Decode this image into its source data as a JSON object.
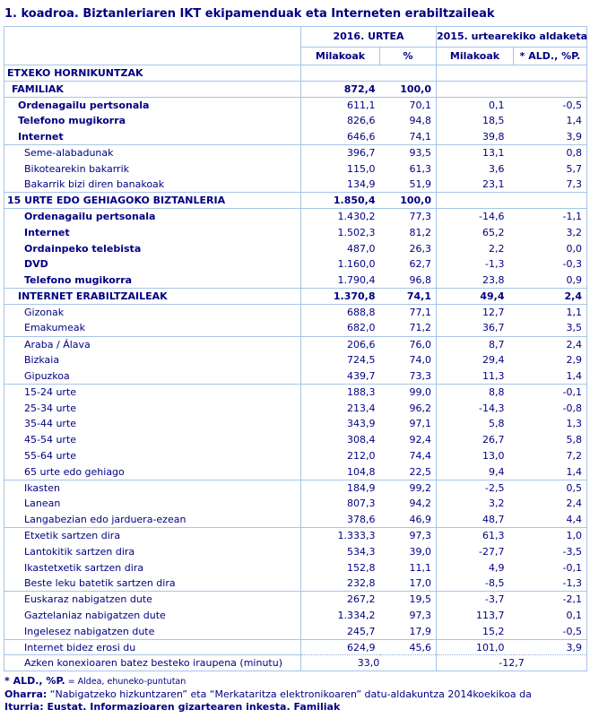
{
  "title": "1. koadroa. Biztanleriaren IKT ekipamenduak eta Interneten erabiltzaileak",
  "colors": {
    "text_navy": "#000082",
    "grid_light_blue": "#a6c5e8",
    "background": "#ffffff"
  },
  "table": {
    "corner_label": "",
    "groups": [
      {
        "label": "2016. URTEA"
      },
      {
        "label": "2015. urtearekiko aldaketa"
      }
    ],
    "sub_headers": [
      "Milakoak",
      "%",
      "Milakoak",
      "* ALD., %P."
    ],
    "rows": [
      {
        "label": "ETXEKO HORNIKUNTZAK",
        "indent": 0,
        "bold": true,
        "sep": true,
        "values": [
          "",
          "",
          "",
          ""
        ]
      },
      {
        "label": "FAMILIAK",
        "indent": 1,
        "bold": true,
        "vbold": true,
        "sep": true,
        "values": [
          "872,4",
          "100,0",
          "",
          ""
        ]
      },
      {
        "label": "Ordenagailu pertsonala",
        "indent": 2,
        "bold": true,
        "sep": true,
        "values": [
          "611,1",
          "70,1",
          "0,1",
          "-0,5"
        ]
      },
      {
        "label": "Telefono mugikorra",
        "indent": 2,
        "bold": true,
        "values": [
          "826,6",
          "94,8",
          "18,5",
          "1,4"
        ]
      },
      {
        "label": "Internet",
        "indent": 2,
        "bold": true,
        "values": [
          "646,6",
          "74,1",
          "39,8",
          "3,9"
        ]
      },
      {
        "label": "Seme-alabadunak",
        "indent": 3,
        "sep": true,
        "values": [
          "396,7",
          "93,5",
          "13,1",
          "0,8"
        ]
      },
      {
        "label": "Bikotearekin bakarrik",
        "indent": 3,
        "values": [
          "115,0",
          "61,3",
          "3,6",
          "5,7"
        ]
      },
      {
        "label": "Bakarrik bizi diren banakoak",
        "indent": 3,
        "values": [
          "134,9",
          "51,9",
          "23,1",
          "7,3"
        ]
      },
      {
        "label": "15 URTE EDO GEHIAGOKO BIZTANLERIA",
        "indent": 0,
        "bold": true,
        "vbold": true,
        "sep": true,
        "values": [
          "1.850,4",
          "100,0",
          "",
          ""
        ]
      },
      {
        "label": "Ordenagailu pertsonala",
        "indent": 3,
        "bold": true,
        "sep": true,
        "values": [
          "1.430,2",
          "77,3",
          "-14,6",
          "-1,1"
        ]
      },
      {
        "label": "Internet",
        "indent": 3,
        "bold": true,
        "values": [
          "1.502,3",
          "81,2",
          "65,2",
          "3,2"
        ]
      },
      {
        "label": "Ordainpeko telebista",
        "indent": 3,
        "bold": true,
        "values": [
          "487,0",
          "26,3",
          "2,2",
          "0,0"
        ]
      },
      {
        "label": "DVD",
        "indent": 3,
        "bold": true,
        "values": [
          "1.160,0",
          "62,7",
          "-1,3",
          "-0,3"
        ]
      },
      {
        "label": "Telefono mugikorra",
        "indent": 3,
        "bold": true,
        "values": [
          "1.790,4",
          "96,8",
          "23,8",
          "0,9"
        ]
      },
      {
        "label": "INTERNET ERABILTZAILEAK",
        "indent": 2,
        "bold": true,
        "vbold": true,
        "sep": true,
        "values": [
          "1.370,8",
          "74,1",
          "49,4",
          "2,4"
        ]
      },
      {
        "label": "Gizonak",
        "indent": 3,
        "sep": true,
        "values": [
          "688,8",
          "77,1",
          "12,7",
          "1,1"
        ]
      },
      {
        "label": "Emakumeak",
        "indent": 3,
        "values": [
          "682,0",
          "71,2",
          "36,7",
          "3,5"
        ]
      },
      {
        "label": "Araba / Álava",
        "indent": 3,
        "sep": true,
        "values": [
          "206,6",
          "76,0",
          "8,7",
          "2,4"
        ]
      },
      {
        "label": "Bizkaia",
        "indent": 3,
        "values": [
          "724,5",
          "74,0",
          "29,4",
          "2,9"
        ]
      },
      {
        "label": "Gipuzkoa",
        "indent": 3,
        "values": [
          "439,7",
          "73,3",
          "11,3",
          "1,4"
        ]
      },
      {
        "label": "15-24 urte",
        "indent": 3,
        "sep": true,
        "values": [
          "188,3",
          "99,0",
          "8,8",
          "-0,1"
        ]
      },
      {
        "label": "25-34 urte",
        "indent": 3,
        "values": [
          "213,4",
          "96,2",
          "-14,3",
          "-0,8"
        ]
      },
      {
        "label": "35-44 urte",
        "indent": 3,
        "values": [
          "343,9",
          "97,1",
          "5,8",
          "1,3"
        ]
      },
      {
        "label": "45-54 urte",
        "indent": 3,
        "values": [
          "308,4",
          "92,4",
          "26,7",
          "5,8"
        ]
      },
      {
        "label": "55-64 urte",
        "indent": 3,
        "values": [
          "212,0",
          "74,4",
          "13,0",
          "7,2"
        ]
      },
      {
        "label": "65 urte edo gehiago",
        "indent": 3,
        "values": [
          "104,8",
          "22,5",
          "9,4",
          "1,4"
        ]
      },
      {
        "label": "Ikasten",
        "indent": 3,
        "sep": true,
        "values": [
          "184,9",
          "99,2",
          "-2,5",
          "0,5"
        ]
      },
      {
        "label": "Lanean",
        "indent": 3,
        "values": [
          "807,3",
          "94,2",
          "3,2",
          "2,4"
        ]
      },
      {
        "label": "Langabezian edo jarduera-ezean",
        "indent": 3,
        "values": [
          "378,6",
          "46,9",
          "48,7",
          "4,4"
        ]
      },
      {
        "label": "Etxetik sartzen dira",
        "indent": 3,
        "sep": true,
        "values": [
          "1.333,3",
          "97,3",
          "61,3",
          "1,0"
        ]
      },
      {
        "label": "Lantokitik sartzen dira",
        "indent": 3,
        "values": [
          "534,3",
          "39,0",
          "-27,7",
          "-3,5"
        ]
      },
      {
        "label": "Ikastetxetik sartzen dira",
        "indent": 3,
        "values": [
          "152,8",
          "11,1",
          "4,9",
          "-0,1"
        ]
      },
      {
        "label": "Beste leku batetik sartzen dira",
        "indent": 3,
        "values": [
          "232,8",
          "17,0",
          "-8,5",
          "-1,3"
        ]
      },
      {
        "label": "Euskaraz nabigatzen dute",
        "indent": 3,
        "sep": true,
        "values": [
          "267,2",
          "19,5",
          "-3,7",
          "-2,1"
        ]
      },
      {
        "label": "Gaztelaniaz nabigatzen dute",
        "indent": 3,
        "values": [
          "1.334,2",
          "97,3",
          "113,7",
          "0,1"
        ]
      },
      {
        "label": "Ingelesez nabigatzen dute",
        "indent": 3,
        "values": [
          "245,7",
          "17,9",
          "15,2",
          "-0,5"
        ]
      },
      {
        "label": "Internet bidez erosi du",
        "indent": 3,
        "sep": true,
        "values": [
          "624,9",
          "45,6",
          "101,0",
          "3,9"
        ]
      },
      {
        "label": "Azken konexioaren batez besteko iraupena (minutu)",
        "indent": 3,
        "span": true,
        "values": [
          "33,0",
          "-12,7"
        ]
      }
    ]
  },
  "footnotes": [
    {
      "lead": "* ALD., %P.",
      "rest": " = Aldea, ehuneko-puntutan",
      "style": "small-rest"
    },
    {
      "lead": "Oharra:",
      "rest": " “Nabigatzeko hizkuntzaren” eta “Merkataritza elektronikoaren” datu-aldakuntza 2014koekikoa da",
      "style": ""
    },
    {
      "lead": "Iturria:",
      "rest": " Eustat. Informazioaren gizartearen inkesta. Familiak",
      "style": "all-bold"
    }
  ]
}
